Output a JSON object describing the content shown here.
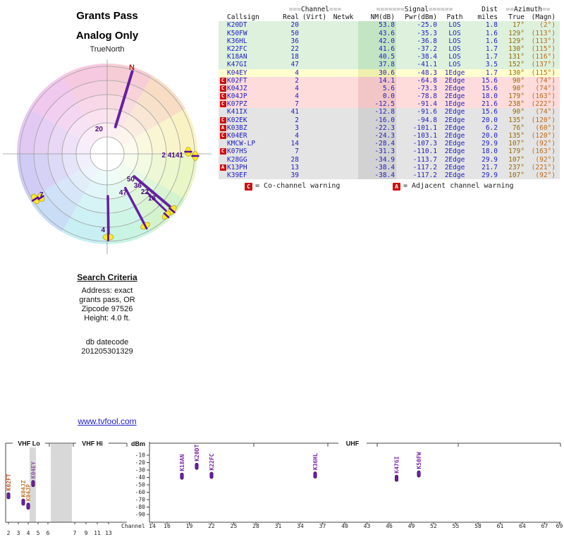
{
  "radar": {
    "title_line1": "Grants Pass",
    "title_line2": "Analog Only",
    "north_label": "TrueNorth",
    "n_marker": "N",
    "wheel_colors": [
      "#f6cdd4",
      "#f8ddc4",
      "#f9f3c4",
      "#e9f6c6",
      "#d3f3cd",
      "#c9f4e4",
      "#c8f0f4",
      "#c9ddf6",
      "#d0ccf5",
      "#e2c9f3",
      "#f1c8ee",
      "#f6c9e0"
    ],
    "spokes": [
      {
        "label": "20",
        "azimuth_true": 17
      },
      {
        "label": "50",
        "azimuth_true": 129
      },
      {
        "label": "36",
        "azimuth_true": 129
      },
      {
        "label": "22",
        "azimuth_true": 130
      },
      {
        "label": "18",
        "azimuth_true": 131
      },
      {
        "label": "47",
        "azimuth_true": 152
      },
      {
        "label": "4",
        "azimuth_true": 179
      },
      {
        "label": "2 4141",
        "azimuth_true": 90
      },
      {
        "label": "7",
        "azimuth_true": 238
      }
    ]
  },
  "table": {
    "header_groups": {
      "channel": {
        "pre": "===",
        "label": "Channel",
        "post": "==="
      },
      "signal": {
        "pre": "=======",
        "label": "Signal",
        "post": "======"
      },
      "dist": "Dist",
      "azimuth": {
        "pre": "==",
        "label": "Azimuth",
        "post": "=="
      }
    },
    "columns": [
      "Callsign",
      "Real",
      "(Virt)",
      "Netwk",
      "NM(dB)",
      "Pwr(dBm)",
      "Path",
      "miles",
      "True",
      "(Magn)"
    ],
    "rows": [
      {
        "callsign": "K20DT",
        "real": "20",
        "virt": "",
        "netwk": "",
        "nm": "53.8",
        "pwr": "-25.0",
        "path": "LOS",
        "miles": "1.8",
        "az_true": "17°",
        "az_magn": "(2°)",
        "tier": "green",
        "warn": ""
      },
      {
        "callsign": "K50FW",
        "real": "50",
        "virt": "",
        "netwk": "",
        "nm": "43.6",
        "pwr": "-35.3",
        "path": "LOS",
        "miles": "1.6",
        "az_true": "129°",
        "az_magn": "(113°)",
        "tier": "green",
        "warn": ""
      },
      {
        "callsign": "K36HL",
        "real": "36",
        "virt": "",
        "netwk": "",
        "nm": "42.0",
        "pwr": "-36.8",
        "path": "LOS",
        "miles": "1.6",
        "az_true": "129°",
        "az_magn": "(113°)",
        "tier": "green",
        "warn": ""
      },
      {
        "callsign": "K22FC",
        "real": "22",
        "virt": "",
        "netwk": "",
        "nm": "41.6",
        "pwr": "-37.2",
        "path": "LOS",
        "miles": "1.7",
        "az_true": "130°",
        "az_magn": "(115°)",
        "tier": "green",
        "warn": ""
      },
      {
        "callsign": "K18AN",
        "real": "18",
        "virt": "",
        "netwk": "",
        "nm": "40.5",
        "pwr": "-38.4",
        "path": "LOS",
        "miles": "1.7",
        "az_true": "131°",
        "az_magn": "(116°)",
        "tier": "green",
        "warn": ""
      },
      {
        "callsign": "K47GI",
        "real": "47",
        "virt": "",
        "netwk": "",
        "nm": "37.8",
        "pwr": "-41.1",
        "path": "LOS",
        "miles": "3.5",
        "az_true": "152°",
        "az_magn": "(137°)",
        "tier": "green",
        "warn": ""
      },
      {
        "callsign": "K04EY",
        "real": "4",
        "virt": "",
        "netwk": "",
        "nm": "30.6",
        "pwr": "-48.3",
        "path": "1Edge",
        "miles": "1.7",
        "az_true": "130°",
        "az_magn": "(115°)",
        "tier": "yellow",
        "warn": ""
      },
      {
        "callsign": "K02FT",
        "real": "2",
        "virt": "",
        "netwk": "",
        "nm": "14.1",
        "pwr": "-64.8",
        "path": "2Edge",
        "miles": "15.6",
        "az_true": "90°",
        "az_magn": "(74°)",
        "tier": "pink",
        "warn": "C"
      },
      {
        "callsign": "K04JZ",
        "real": "4",
        "virt": "",
        "netwk": "",
        "nm": "5.6",
        "pwr": "-73.3",
        "path": "2Edge",
        "miles": "15.6",
        "az_true": "90°",
        "az_magn": "(74°)",
        "tier": "pink",
        "warn": "C"
      },
      {
        "callsign": "K04JP",
        "real": "4",
        "virt": "",
        "netwk": "",
        "nm": "0.0",
        "pwr": "-78.8",
        "path": "2Edge",
        "miles": "18.0",
        "az_true": "179°",
        "az_magn": "(163°)",
        "tier": "pink",
        "warn": "C"
      },
      {
        "callsign": "K07PZ",
        "real": "7",
        "virt": "",
        "netwk": "",
        "nm": "-12.5",
        "pwr": "-91.4",
        "path": "1Edge",
        "miles": "21.6",
        "az_true": "238°",
        "az_magn": "(222°)",
        "tier": "pink",
        "warn": "C"
      },
      {
        "callsign": "K41IX",
        "real": "41",
        "virt": "",
        "netwk": "",
        "nm": "-12.8",
        "pwr": "-91.6",
        "path": "2Edge",
        "miles": "15.6",
        "az_true": "90°",
        "az_magn": "(74°)",
        "tier": "gray",
        "warn": ""
      },
      {
        "callsign": "K02EK",
        "real": "2",
        "virt": "",
        "netwk": "",
        "nm": "-16.0",
        "pwr": "-94.8",
        "path": "2Edge",
        "miles": "20.0",
        "az_true": "135°",
        "az_magn": "(120°)",
        "tier": "gray",
        "warn": "C"
      },
      {
        "callsign": "K03BZ",
        "real": "3",
        "virt": "",
        "netwk": "",
        "nm": "-22.3",
        "pwr": "-101.1",
        "path": "2Edge",
        "miles": "6.2",
        "az_true": "76°",
        "az_magn": "(60°)",
        "tier": "gray",
        "warn": "A"
      },
      {
        "callsign": "K04ER",
        "real": "4",
        "virt": "",
        "netwk": "",
        "nm": "-24.3",
        "pwr": "-103.1",
        "path": "2Edge",
        "miles": "20.0",
        "az_true": "135°",
        "az_magn": "(120°)",
        "tier": "gray",
        "warn": "C"
      },
      {
        "callsign": "KMCW-LP",
        "real": "14",
        "virt": "",
        "netwk": "",
        "nm": "-28.4",
        "pwr": "-107.3",
        "path": "2Edge",
        "miles": "29.9",
        "az_true": "107°",
        "az_magn": "(92°)",
        "tier": "gray",
        "warn": ""
      },
      {
        "callsign": "K07HS",
        "real": "7",
        "virt": "",
        "netwk": "",
        "nm": "-31.3",
        "pwr": "-110.1",
        "path": "2Edge",
        "miles": "18.0",
        "az_true": "179°",
        "az_magn": "(163°)",
        "tier": "gray",
        "warn": "C"
      },
      {
        "callsign": "K28GG",
        "real": "28",
        "virt": "",
        "netwk": "",
        "nm": "-34.9",
        "pwr": "-113.7",
        "path": "2Edge",
        "miles": "29.9",
        "az_true": "107°",
        "az_magn": "(92°)",
        "tier": "gray",
        "warn": ""
      },
      {
        "callsign": "K13PH",
        "real": "13",
        "virt": "",
        "netwk": "",
        "nm": "-38.4",
        "pwr": "-117.2",
        "path": "2Edge",
        "miles": "21.7",
        "az_true": "237°",
        "az_magn": "(221°)",
        "tier": "gray",
        "warn": "A"
      },
      {
        "callsign": "K39EF",
        "real": "39",
        "virt": "",
        "netwk": "",
        "nm": "-38.4",
        "pwr": "-117.2",
        "path": "2Edge",
        "miles": "29.9",
        "az_true": "107°",
        "az_magn": "(92°)",
        "tier": "gray",
        "warn": ""
      }
    ]
  },
  "legend": {
    "co_symbol": "C",
    "co_text": "= Co-channel warning",
    "adj_symbol": "A",
    "adj_text": "= Adjacent channel warning"
  },
  "search": {
    "title": "Search Criteria",
    "line1": "Address: exact",
    "line2": "grants pass, OR",
    "line3": "Zipcode 97526",
    "line4": "Height: 4.0 ft.",
    "datecode_label": "db datecode",
    "datecode": "201205301329"
  },
  "link": {
    "text": "www.tvfool.com"
  },
  "bottom_chart": {
    "vhf_lo": "VHF Lo",
    "vhf_hi": "VHF Hi",
    "uhf": "UHF",
    "dbm": "dBm",
    "channel_label": "Channel",
    "y_ticks": [
      -10,
      -20,
      -30,
      -40,
      -50,
      -60,
      -70,
      -80,
      -90
    ],
    "uhf_channels": [
      14,
      16,
      19,
      22,
      25,
      28,
      31,
      34,
      37,
      40,
      43,
      46,
      49,
      52,
      55,
      58,
      61,
      64,
      67,
      69
    ],
    "vhf_channels": [
      2,
      3,
      4,
      5,
      6,
      7,
      9,
      11,
      13
    ]
  },
  "colors": {
    "spoke_purple": "#5a0b9e",
    "highlight_yellow": "#ffe920",
    "warning_red": "#cc1111",
    "value_blue": "#2020c0",
    "azimuth_true": "#9a6a00",
    "azimuth_magn": "#c06818"
  },
  "chart_data": [
    {
      "type": "scatter",
      "title": "Azimuth radar plot (plotted channel numbers, true azimuth degrees)",
      "points": [
        {
          "label": "20",
          "azimuth_true": 17
        },
        {
          "label": "50",
          "azimuth_true": 129
        },
        {
          "label": "36",
          "azimuth_true": 129
        },
        {
          "label": "22",
          "azimuth_true": 130
        },
        {
          "label": "18",
          "azimuth_true": 131
        },
        {
          "label": "47",
          "azimuth_true": 152
        },
        {
          "label": "4",
          "azimuth_true": 179
        },
        {
          "label": "2",
          "azimuth_true": 90
        },
        {
          "label": "4",
          "azimuth_true": 90
        },
        {
          "label": "41",
          "azimuth_true": 90
        },
        {
          "label": "7",
          "azimuth_true": 238
        }
      ]
    },
    {
      "type": "scatter",
      "title": "Signal strength by channel",
      "xlabel": "Channel",
      "ylabel": "dBm",
      "ylim": [
        -90,
        -10
      ],
      "points": [
        {
          "label": "K02FT",
          "channel": 2,
          "dbm": -64.8,
          "color": "#c05a30"
        },
        {
          "label": "K04JZ",
          "channel": 4,
          "dbm": -73.3,
          "color": "#c07a30"
        },
        {
          "label": "K04JP",
          "channel": 4,
          "dbm": -78.8,
          "color": "#c07a30"
        },
        {
          "label": "K04EY",
          "channel": 4,
          "dbm": -48.3,
          "color": "#8a55a8"
        },
        {
          "label": "K18AN",
          "channel": 18,
          "dbm": -38.4,
          "color": "#7a22aa"
        },
        {
          "label": "K20DT",
          "channel": 20,
          "dbm": -25.0,
          "color": "#7a22aa"
        },
        {
          "label": "K22FC",
          "channel": 22,
          "dbm": -37.2,
          "color": "#7a22aa"
        },
        {
          "label": "K36HL",
          "channel": 36,
          "dbm": -36.8,
          "color": "#7a22aa"
        },
        {
          "label": "K47GI",
          "channel": 47,
          "dbm": -41.1,
          "color": "#7a22aa"
        },
        {
          "label": "K50FW",
          "channel": 50,
          "dbm": -35.3,
          "color": "#7a22aa"
        }
      ]
    }
  ]
}
